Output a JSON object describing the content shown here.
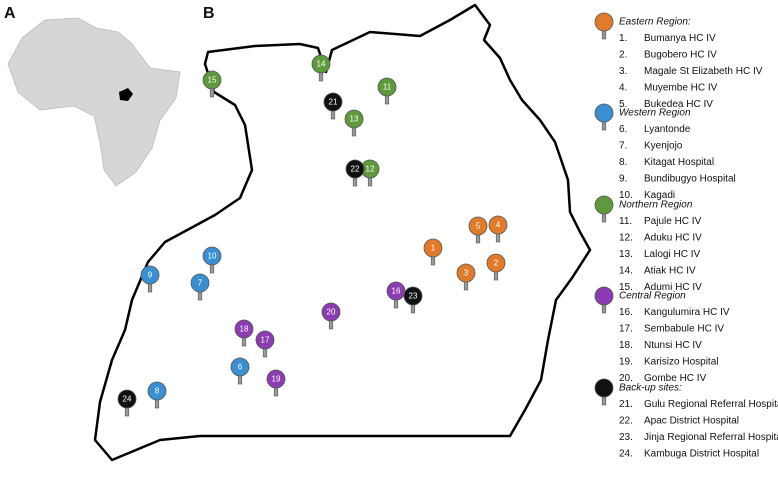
{
  "panels": {
    "a": "A",
    "b": "B"
  },
  "groups": [
    {
      "title": "Eastern Region:",
      "color": "#e07b2a",
      "items": [
        {
          "number": "1.",
          "name": "Bumanya HC IV"
        },
        {
          "number": "2.",
          "name": "Bugobero HC IV"
        },
        {
          "number": "3.",
          "name": "Magale St Elizabeth HC IV"
        },
        {
          "number": "4.",
          "name": "Muyembe HC IV"
        },
        {
          "number": "5.",
          "name": "Bukedea HC IV"
        }
      ],
      "pins": [
        "1",
        "2",
        "3",
        "4",
        "5"
      ]
    },
    {
      "title": "Western Region",
      "color": "#3a8fd0",
      "items": [
        {
          "number": "6.",
          "name": "Lyantonde"
        },
        {
          "number": "7.",
          "name": "Kyenjojo"
        },
        {
          "number": "8.",
          "name": "Kitagat Hospital"
        },
        {
          "number": "9.",
          "name": "Bundibugyo Hospital"
        },
        {
          "number": "10.",
          "name": "Kagadi"
        }
      ],
      "pins": [
        "6",
        "7",
        "8",
        "9",
        "10"
      ]
    },
    {
      "title": "Northern Region",
      "color": "#5e9a3c",
      "items": [
        {
          "number": "11.",
          "name": "Pajule HC IV"
        },
        {
          "number": "12.",
          "name": "Aduku HC IV"
        },
        {
          "number": "13.",
          "name": "Lalogi HC IV"
        },
        {
          "number": "14.",
          "name": "Atiak HC IV"
        },
        {
          "number": "15.",
          "name": "Adumi HC IV"
        }
      ],
      "pins": [
        "11",
        "12",
        "13",
        "14",
        "15"
      ]
    },
    {
      "title": "Central Region",
      "color": "#8a3cb0",
      "items": [
        {
          "number": "16.",
          "name": "Kangulumira HC IV"
        },
        {
          "number": "17.",
          "name": "Sembabule HC IV"
        },
        {
          "number": "18.",
          "name": "Ntunsi HC IV"
        },
        {
          "number": "19.",
          "name": "Karisizo Hospital"
        },
        {
          "number": "20.",
          "name": "Gombe HC IV"
        }
      ],
      "pins": [
        "16",
        "17",
        "18",
        "19",
        "20"
      ]
    },
    {
      "title": "Back-up sites:",
      "color": "#111111",
      "items": [
        {
          "number": "21.",
          "name": "Gulu Regional Referral Hospital"
        },
        {
          "number": "22.",
          "name": "Apac District Hospital"
        },
        {
          "number": "23.",
          "name": "Jinja Regional Referral Hospital"
        },
        {
          "number": "24.",
          "name": "Kambuga District Hospital"
        }
      ],
      "pins": [
        "21",
        "22",
        "23",
        "24"
      ]
    }
  ]
}
